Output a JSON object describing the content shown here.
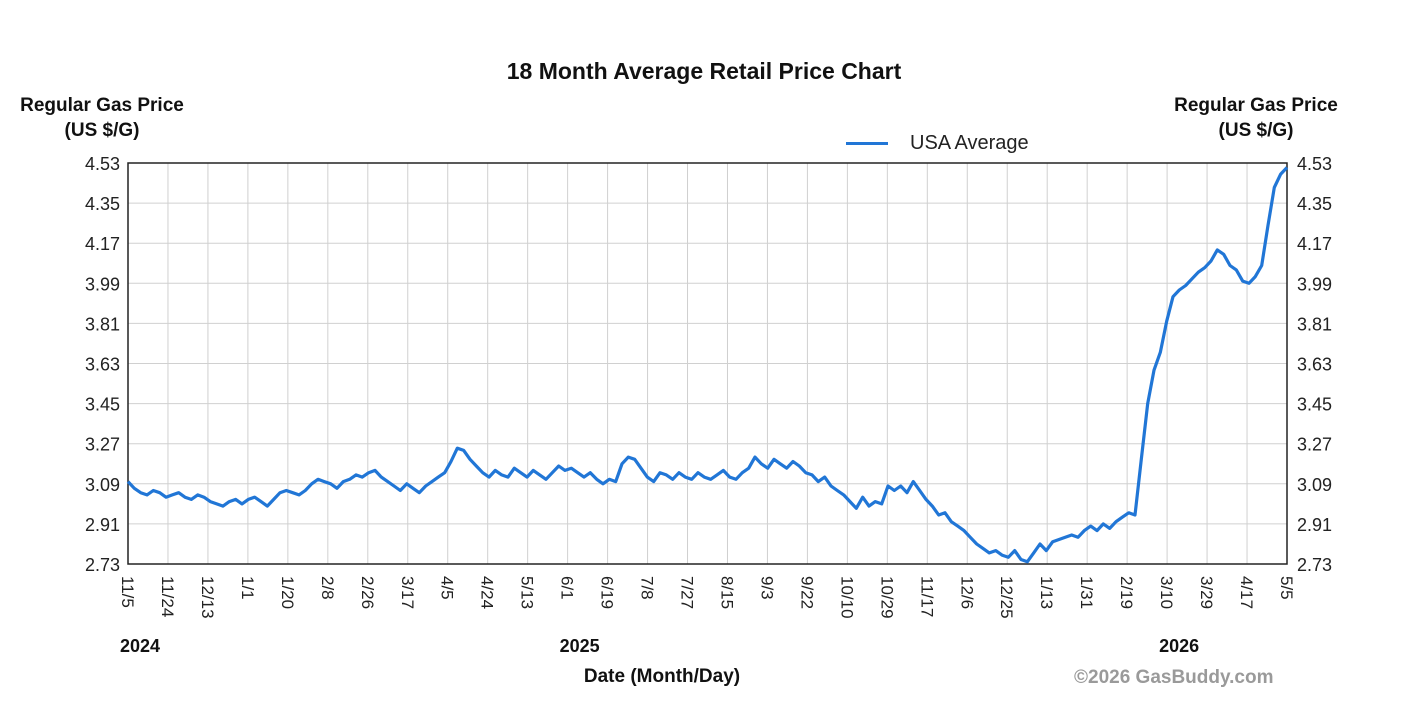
{
  "chart_data": {
    "type": "line",
    "title": "18 Month Average Retail Price Chart",
    "ylabel_left": "Regular Gas Price (US $/G)",
    "ylabel_right": "Regular Gas Price (US $/G)",
    "xlabel": "Date (Month/Day)",
    "ylim": [
      2.73,
      4.53
    ],
    "yticks": [
      "4.53",
      "4.35",
      "4.17",
      "3.99",
      "3.81",
      "3.63",
      "3.45",
      "3.27",
      "3.09",
      "2.91",
      "2.73"
    ],
    "xticks": [
      "11/5",
      "11/24",
      "12/13",
      "1/1",
      "1/20",
      "2/8",
      "2/26",
      "3/17",
      "4/5",
      "4/24",
      "5/13",
      "6/1",
      "6/19",
      "7/8",
      "7/27",
      "8/15",
      "9/3",
      "9/22",
      "10/10",
      "10/29",
      "11/17",
      "12/6",
      "12/25",
      "1/13",
      "1/31",
      "2/19",
      "3/10",
      "3/29",
      "4/17",
      "5/5"
    ],
    "years": [
      {
        "label": "2024",
        "tick": "11/5"
      },
      {
        "label": "2025",
        "tick": "6/1"
      },
      {
        "label": "2026",
        "tick": "3/10"
      }
    ],
    "grid": true,
    "legend_position": "top-right",
    "color": "#2176d6",
    "series": [
      {
        "name": "USA Average",
        "points": [
          [
            0,
            3.1
          ],
          [
            1,
            3.07
          ],
          [
            2,
            3.05
          ],
          [
            3,
            3.04
          ],
          [
            4,
            3.06
          ],
          [
            5,
            3.05
          ],
          [
            6,
            3.03
          ],
          [
            7,
            3.04
          ],
          [
            8,
            3.05
          ],
          [
            9,
            3.03
          ],
          [
            10,
            3.02
          ],
          [
            11,
            3.04
          ],
          [
            12,
            3.03
          ],
          [
            13,
            3.01
          ],
          [
            14,
            3.0
          ],
          [
            15,
            2.99
          ],
          [
            16,
            3.01
          ],
          [
            17,
            3.02
          ],
          [
            18,
            3.0
          ],
          [
            19,
            3.02
          ],
          [
            20,
            3.03
          ],
          [
            21,
            3.01
          ],
          [
            22,
            2.99
          ],
          [
            23,
            3.02
          ],
          [
            24,
            3.05
          ],
          [
            25,
            3.06
          ],
          [
            26,
            3.05
          ],
          [
            27,
            3.04
          ],
          [
            28,
            3.06
          ],
          [
            29,
            3.09
          ],
          [
            30,
            3.11
          ],
          [
            31,
            3.1
          ],
          [
            32,
            3.09
          ],
          [
            33,
            3.07
          ],
          [
            34,
            3.1
          ],
          [
            35,
            3.11
          ],
          [
            36,
            3.13
          ],
          [
            37,
            3.12
          ],
          [
            38,
            3.14
          ],
          [
            39,
            3.15
          ],
          [
            40,
            3.12
          ],
          [
            41,
            3.1
          ],
          [
            42,
            3.08
          ],
          [
            43,
            3.06
          ],
          [
            44,
            3.09
          ],
          [
            45,
            3.07
          ],
          [
            46,
            3.05
          ],
          [
            47,
            3.08
          ],
          [
            48,
            3.1
          ],
          [
            49,
            3.12
          ],
          [
            50,
            3.14
          ],
          [
            51,
            3.19
          ],
          [
            52,
            3.25
          ],
          [
            53,
            3.24
          ],
          [
            54,
            3.2
          ],
          [
            55,
            3.17
          ],
          [
            56,
            3.14
          ],
          [
            57,
            3.12
          ],
          [
            58,
            3.15
          ],
          [
            59,
            3.13
          ],
          [
            60,
            3.12
          ],
          [
            61,
            3.16
          ],
          [
            62,
            3.14
          ],
          [
            63,
            3.12
          ],
          [
            64,
            3.15
          ],
          [
            65,
            3.13
          ],
          [
            66,
            3.11
          ],
          [
            67,
            3.14
          ],
          [
            68,
            3.17
          ],
          [
            69,
            3.15
          ],
          [
            70,
            3.16
          ],
          [
            71,
            3.14
          ],
          [
            72,
            3.12
          ],
          [
            73,
            3.14
          ],
          [
            74,
            3.11
          ],
          [
            75,
            3.09
          ],
          [
            76,
            3.11
          ],
          [
            77,
            3.1
          ],
          [
            78,
            3.18
          ],
          [
            79,
            3.21
          ],
          [
            80,
            3.2
          ],
          [
            81,
            3.16
          ],
          [
            82,
            3.12
          ],
          [
            83,
            3.1
          ],
          [
            84,
            3.14
          ],
          [
            85,
            3.13
          ],
          [
            86,
            3.11
          ],
          [
            87,
            3.14
          ],
          [
            88,
            3.12
          ],
          [
            89,
            3.11
          ],
          [
            90,
            3.14
          ],
          [
            91,
            3.12
          ],
          [
            92,
            3.11
          ],
          [
            93,
            3.13
          ],
          [
            94,
            3.15
          ],
          [
            95,
            3.12
          ],
          [
            96,
            3.11
          ],
          [
            97,
            3.14
          ],
          [
            98,
            3.16
          ],
          [
            99,
            3.21
          ],
          [
            100,
            3.18
          ],
          [
            101,
            3.16
          ],
          [
            102,
            3.2
          ],
          [
            103,
            3.18
          ],
          [
            104,
            3.16
          ],
          [
            105,
            3.19
          ],
          [
            106,
            3.17
          ],
          [
            107,
            3.14
          ],
          [
            108,
            3.13
          ],
          [
            109,
            3.1
          ],
          [
            110,
            3.12
          ],
          [
            111,
            3.08
          ],
          [
            112,
            3.06
          ],
          [
            113,
            3.04
          ],
          [
            114,
            3.01
          ],
          [
            115,
            2.98
          ],
          [
            116,
            3.03
          ],
          [
            117,
            2.99
          ],
          [
            118,
            3.01
          ],
          [
            119,
            3.0
          ],
          [
            120,
            3.08
          ],
          [
            121,
            3.06
          ],
          [
            122,
            3.08
          ],
          [
            123,
            3.05
          ],
          [
            124,
            3.1
          ],
          [
            125,
            3.06
          ],
          [
            126,
            3.02
          ],
          [
            127,
            2.99
          ],
          [
            128,
            2.95
          ],
          [
            129,
            2.96
          ],
          [
            130,
            2.92
          ],
          [
            131,
            2.9
          ],
          [
            132,
            2.88
          ],
          [
            133,
            2.85
          ],
          [
            134,
            2.82
          ],
          [
            135,
            2.8
          ],
          [
            136,
            2.78
          ],
          [
            137,
            2.79
          ],
          [
            138,
            2.77
          ],
          [
            139,
            2.76
          ],
          [
            140,
            2.79
          ],
          [
            141,
            2.75
          ],
          [
            142,
            2.74
          ],
          [
            143,
            2.78
          ],
          [
            144,
            2.82
          ],
          [
            145,
            2.79
          ],
          [
            146,
            2.83
          ],
          [
            147,
            2.84
          ],
          [
            148,
            2.85
          ],
          [
            149,
            2.86
          ],
          [
            150,
            2.85
          ],
          [
            151,
            2.88
          ],
          [
            152,
            2.9
          ],
          [
            153,
            2.88
          ],
          [
            154,
            2.91
          ],
          [
            155,
            2.89
          ],
          [
            156,
            2.92
          ],
          [
            157,
            2.94
          ],
          [
            158,
            2.96
          ],
          [
            159,
            2.95
          ],
          [
            160,
            3.2
          ],
          [
            161,
            3.45
          ],
          [
            162,
            3.6
          ],
          [
            163,
            3.68
          ],
          [
            164,
            3.82
          ],
          [
            165,
            3.93
          ],
          [
            166,
            3.96
          ],
          [
            167,
            3.98
          ],
          [
            168,
            4.01
          ],
          [
            169,
            4.04
          ],
          [
            170,
            4.06
          ],
          [
            171,
            4.09
          ],
          [
            172,
            4.14
          ],
          [
            173,
            4.12
          ],
          [
            174,
            4.07
          ],
          [
            175,
            4.05
          ],
          [
            176,
            4.0
          ],
          [
            177,
            3.99
          ],
          [
            178,
            4.02
          ],
          [
            179,
            4.07
          ],
          [
            180,
            4.25
          ],
          [
            181,
            4.42
          ],
          [
            182,
            4.48
          ],
          [
            183,
            4.51
          ]
        ]
      }
    ]
  },
  "copyright": "©2026 GasBuddy.com"
}
